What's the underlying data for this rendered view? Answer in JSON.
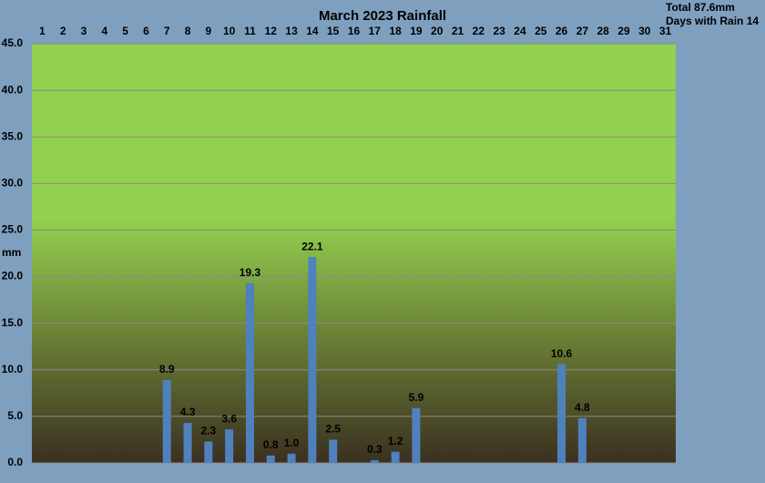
{
  "chart_data": {
    "type": "bar",
    "title": "March 2023 Rainfall",
    "annotations": [
      "Total 87.6mm",
      "Days with Rain 14"
    ],
    "y_label": "mm",
    "categories": [
      "1",
      "2",
      "3",
      "4",
      "5",
      "6",
      "7",
      "8",
      "9",
      "10",
      "11",
      "12",
      "13",
      "14",
      "15",
      "16",
      "17",
      "18",
      "19",
      "20",
      "21",
      "22",
      "23",
      "24",
      "25",
      "26",
      "27",
      "28",
      "29",
      "30",
      "31"
    ],
    "values": [
      0,
      0,
      0,
      0,
      0,
      0,
      8.9,
      4.3,
      2.3,
      3.6,
      19.3,
      0.8,
      1.0,
      22.1,
      2.5,
      0,
      0.3,
      1.2,
      5.9,
      0,
      0,
      0,
      0,
      0,
      0,
      10.6,
      4.8,
      0,
      0,
      0,
      0
    ],
    "value_labels": [
      null,
      null,
      null,
      null,
      null,
      null,
      "8.9",
      "4.3",
      "2.3",
      "3.6",
      "19.3",
      "0.8",
      "1.0",
      "22.1",
      "2.5",
      null,
      "0.3",
      "1.2",
      "5.9",
      null,
      null,
      null,
      null,
      null,
      null,
      "10.6",
      "4.8",
      null,
      null,
      null,
      null
    ],
    "color": "#4f81bd",
    "ylim": [
      0,
      45
    ],
    "yticks": [
      {
        "value": 0,
        "label": "0.0"
      },
      {
        "value": 5,
        "label": "5.0"
      },
      {
        "value": 10,
        "label": "10.0"
      },
      {
        "value": 15,
        "label": "15.0"
      },
      {
        "value": 20,
        "label": "20.0"
      },
      {
        "value": 25,
        "label": "25.0"
      },
      {
        "value": 30,
        "label": "30.0"
      },
      {
        "value": 35,
        "label": "35.0"
      },
      {
        "value": 40,
        "label": "40.0"
      },
      {
        "value": 45,
        "label": "45.0"
      }
    ],
    "grid": true
  }
}
